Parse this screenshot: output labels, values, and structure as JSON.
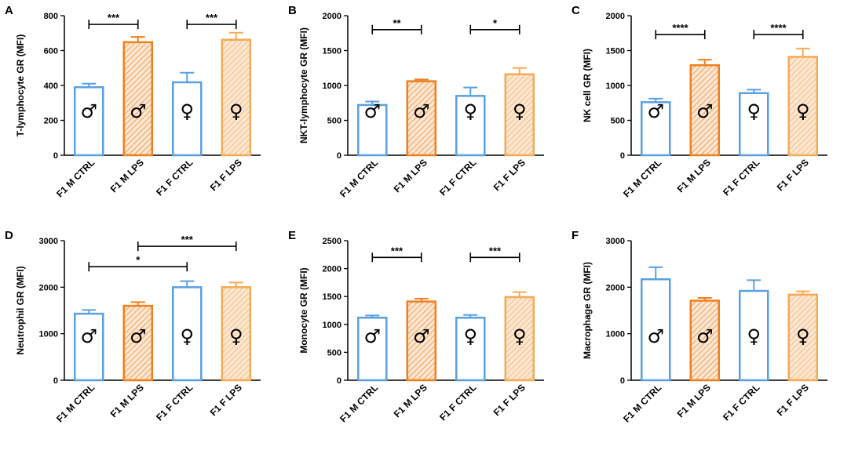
{
  "chart_data": [
    {
      "type": "bar",
      "panel_label": "A",
      "ylabel": "T-lymphocyte GR (MFI)",
      "ylim": [
        0,
        800
      ],
      "yticks": [
        0,
        200,
        400,
        600,
        800
      ],
      "categories": [
        "F1 M CTRL",
        "F1 M LPS",
        "F1 F CTRL",
        "F1 F LPS"
      ],
      "values": [
        390,
        648,
        418,
        662
      ],
      "errors": [
        20,
        30,
        55,
        40
      ],
      "bar_colors": [
        "#5aa0e0",
        "#f07f1e",
        "#5aa0e0",
        "#f5aa55"
      ],
      "hatched": [
        false,
        true,
        false,
        true
      ],
      "symbols": [
        "♂",
        "♂",
        "♀",
        "♀"
      ],
      "significance": [
        {
          "from": 0,
          "to": 1,
          "label": "***",
          "y": 750
        },
        {
          "from": 2,
          "to": 3,
          "label": "***",
          "y": 750
        }
      ]
    },
    {
      "type": "bar",
      "panel_label": "B",
      "ylabel": "NKT-lymphocyte GR (MFI)",
      "ylim": [
        0,
        2000
      ],
      "yticks": [
        0,
        500,
        1000,
        1500,
        2000
      ],
      "categories": [
        "F1 M CTRL",
        "F1 M LPS",
        "F1 F CTRL",
        "F1 F LPS"
      ],
      "values": [
        720,
        1060,
        850,
        1160
      ],
      "errors": [
        50,
        25,
        120,
        90
      ],
      "bar_colors": [
        "#5aa0e0",
        "#f07f1e",
        "#5aa0e0",
        "#f5aa55"
      ],
      "hatched": [
        false,
        true,
        false,
        true
      ],
      "symbols": [
        "♂",
        "♂",
        "♀",
        "♀"
      ],
      "significance": [
        {
          "from": 0,
          "to": 1,
          "label": "**",
          "y": 1800
        },
        {
          "from": 2,
          "to": 3,
          "label": "*",
          "y": 1800
        }
      ]
    },
    {
      "type": "bar",
      "panel_label": "C",
      "ylabel": "NK cell GR (MFI)",
      "ylim": [
        0,
        2000
      ],
      "yticks": [
        0,
        500,
        1000,
        1500,
        2000
      ],
      "categories": [
        "F1 M CTRL",
        "F1 M LPS",
        "F1 F CTRL",
        "F1 F LPS"
      ],
      "values": [
        760,
        1290,
        890,
        1410
      ],
      "errors": [
        50,
        80,
        50,
        120
      ],
      "bar_colors": [
        "#5aa0e0",
        "#f07f1e",
        "#5aa0e0",
        "#f5aa55"
      ],
      "hatched": [
        false,
        true,
        false,
        true
      ],
      "symbols": [
        "♂",
        "♂",
        "♀",
        "♀"
      ],
      "significance": [
        {
          "from": 0,
          "to": 1,
          "label": "****",
          "y": 1730
        },
        {
          "from": 2,
          "to": 3,
          "label": "****",
          "y": 1730
        }
      ]
    },
    {
      "type": "bar",
      "panel_label": "D",
      "ylabel": "Neutrophil GR (MFI)",
      "ylim": [
        0,
        3000
      ],
      "yticks": [
        0,
        1000,
        2000,
        3000
      ],
      "categories": [
        "F1 M CTRL",
        "F1 M LPS",
        "F1 F CTRL",
        "F1 F LPS"
      ],
      "values": [
        1430,
        1600,
        2000,
        2000
      ],
      "errors": [
        80,
        80,
        130,
        100
      ],
      "bar_colors": [
        "#5aa0e0",
        "#f07f1e",
        "#5aa0e0",
        "#f5aa55"
      ],
      "hatched": [
        false,
        true,
        false,
        true
      ],
      "symbols": [
        "♂",
        "♂",
        "♀",
        "♀"
      ],
      "significance": [
        {
          "from": 1,
          "to": 3,
          "label": "***",
          "y": 2880
        },
        {
          "from": 0,
          "to": 2,
          "label": "*",
          "y": 2440
        }
      ]
    },
    {
      "type": "bar",
      "panel_label": "E",
      "ylabel": "Monocyte GR (MFI)",
      "ylim": [
        0,
        2500
      ],
      "yticks": [
        0,
        500,
        1000,
        1500,
        2000,
        2500
      ],
      "categories": [
        "F1 M CTRL",
        "F1 M LPS",
        "F1 F CTRL",
        "F1 F LPS"
      ],
      "values": [
        1120,
        1410,
        1120,
        1490
      ],
      "errors": [
        40,
        50,
        50,
        90
      ],
      "bar_colors": [
        "#5aa0e0",
        "#f07f1e",
        "#5aa0e0",
        "#f5aa55"
      ],
      "hatched": [
        false,
        true,
        false,
        true
      ],
      "symbols": [
        "♂",
        "♂",
        "♀",
        "♀"
      ],
      "significance": [
        {
          "from": 0,
          "to": 1,
          "label": "***",
          "y": 2200
        },
        {
          "from": 2,
          "to": 3,
          "label": "***",
          "y": 2200
        }
      ]
    },
    {
      "type": "bar",
      "panel_label": "F",
      "ylabel": "Macrophage GR (MFI)",
      "ylim": [
        0,
        3000
      ],
      "yticks": [
        0,
        1000,
        2000,
        3000
      ],
      "categories": [
        "F1 M CTRL",
        "F1 M LPS",
        "F1 F CTRL",
        "F1 F LPS"
      ],
      "values": [
        2170,
        1710,
        1920,
        1840
      ],
      "errors": [
        260,
        60,
        230,
        70
      ],
      "bar_colors": [
        "#5aa0e0",
        "#f07f1e",
        "#5aa0e0",
        "#f5aa55"
      ],
      "hatched": [
        false,
        true,
        false,
        true
      ],
      "symbols": [
        "♂",
        "♂",
        "♀",
        "♀"
      ],
      "significance": []
    }
  ]
}
